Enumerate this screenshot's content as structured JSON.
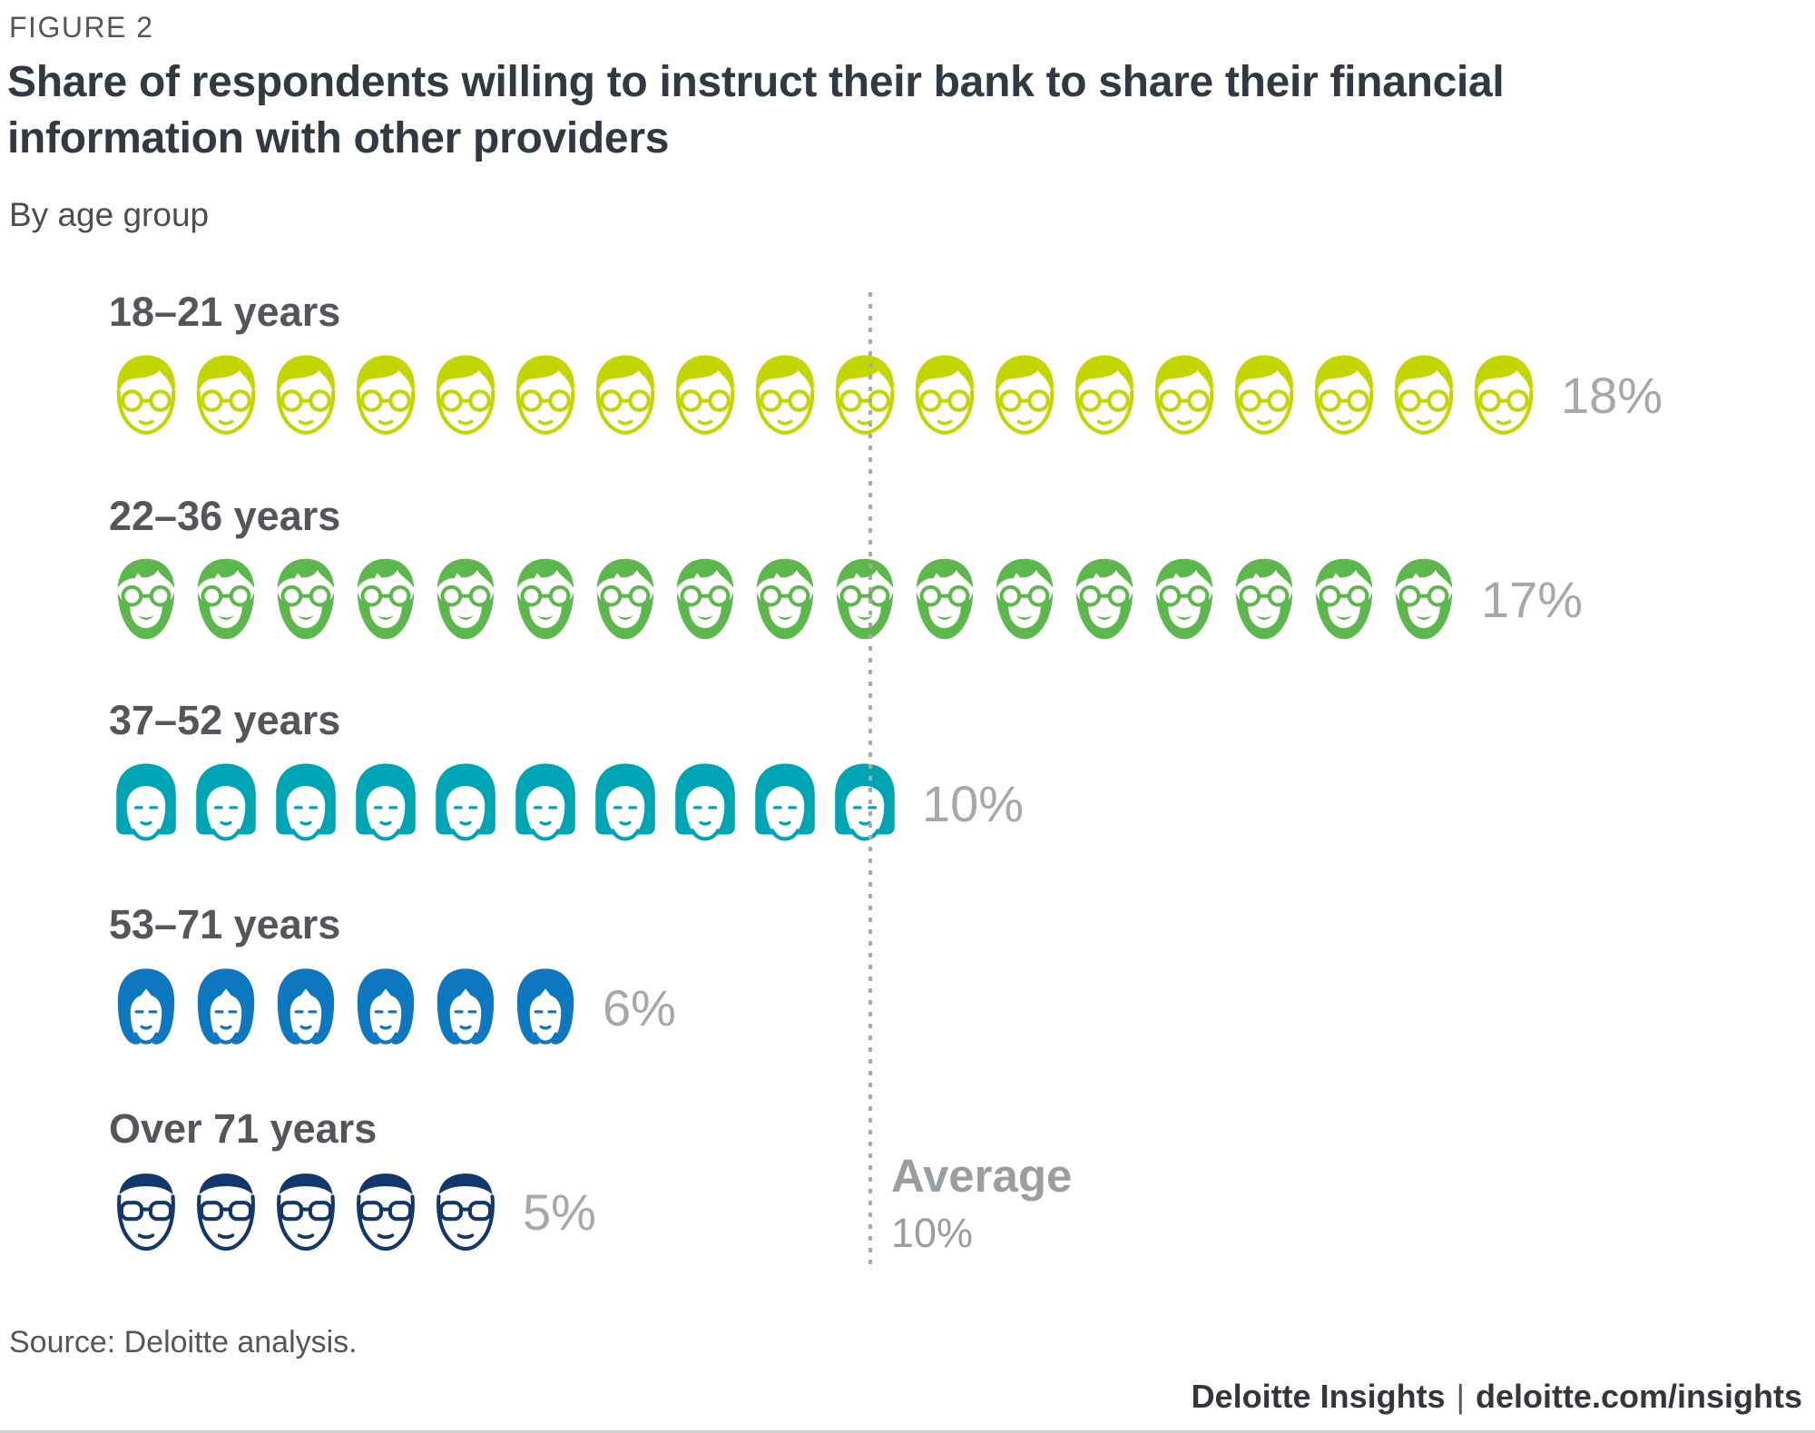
{
  "figure": {
    "eyebrow": "FIGURE 2",
    "title_lines": [
      "Share of respondents willing to instruct their bank to share their financial",
      "information with other providers"
    ],
    "subtitle": "By age group"
  },
  "chart_data": {
    "type": "pictogram",
    "title": "Share of respondents willing to instruct their bank to share their financial information with other providers",
    "subtitle": "By age group",
    "unit_percent_per_icon": 1,
    "categories": [
      "18–21 years",
      "22–36 years",
      "37–52 years",
      "53–71 years",
      "Over 71 years"
    ],
    "values": [
      18,
      17,
      10,
      6,
      5
    ],
    "value_labels": [
      "18%",
      "17%",
      "10%",
      "6%",
      "5%"
    ],
    "colors": [
      "#c4d600",
      "#5cb84c",
      "#00a5b5",
      "#0d78c0",
      "#12386b"
    ],
    "icon_names": [
      "young-person-glasses-face-icon",
      "bearded-man-glasses-face-icon",
      "woman-bob-haircut-face-icon",
      "woman-long-hair-face-icon",
      "older-man-glasses-face-icon"
    ],
    "average": {
      "label": "Average",
      "value": 10,
      "value_label": "10%"
    }
  },
  "footer": {
    "source": "Source: Deloitte analysis.",
    "brand": "Deloitte Insights",
    "separator": "|",
    "site": "deloitte.com/insights"
  }
}
